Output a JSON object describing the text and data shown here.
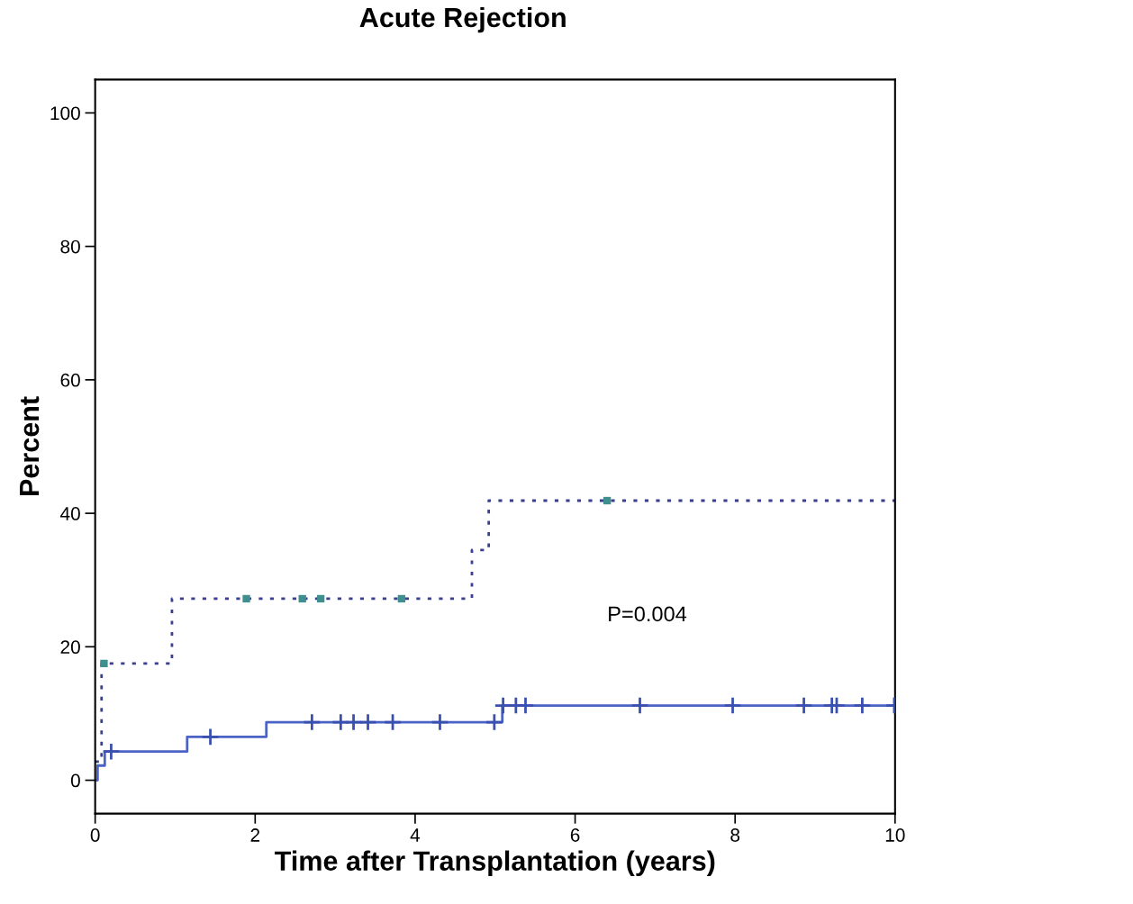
{
  "chart_data": {
    "type": "step",
    "title": "Acute Rejection",
    "xlabel": "Time after Transplantation (years)",
    "ylabel": "Percent",
    "xlim": [
      0,
      10
    ],
    "xticks": [
      0,
      2,
      4,
      6,
      8,
      10
    ],
    "ylim": [
      -5,
      105
    ],
    "yticks": [
      0,
      20,
      40,
      60,
      80,
      100
    ],
    "grid": false,
    "legend": false,
    "annotations": [
      "P=0.004"
    ],
    "series": [
      {
        "color": "#4a63c4",
        "line_style": "solid",
        "marker": "none",
        "x": [
          0,
          0.03,
          0.12,
          1.15,
          2.14,
          5.09,
          10
        ],
        "values": [
          0,
          2.2,
          4.3,
          6.5,
          8.7,
          11.2,
          11.2
        ]
      },
      {
        "color": "#3a3f8f",
        "line_style": "dotted",
        "marker": "none",
        "x": [
          0,
          0.08,
          0.96,
          4.71,
          4.92,
          10
        ],
        "values": [
          2.8,
          17.5,
          27.2,
          34.5,
          41.9,
          41.9
        ]
      },
      {
        "type": "scatter",
        "color": "#3a50b0",
        "marker": "cross",
        "x": [
          0.2,
          1.44,
          2.71,
          3.07,
          3.23,
          3.41,
          3.72,
          4.31,
          4.99,
          5.1,
          5.26,
          5.38,
          6.81,
          7.97,
          8.86,
          9.21,
          9.27,
          9.59,
          9.99
        ],
        "values": [
          4.3,
          6.5,
          8.7,
          8.7,
          8.7,
          8.7,
          8.7,
          8.7,
          8.7,
          11.2,
          11.2,
          11.2,
          11.2,
          11.2,
          11.2,
          11.2,
          11.2,
          11.2,
          11.2
        ]
      },
      {
        "type": "scatter",
        "color": "#3f8f8f",
        "marker": "square",
        "x": [
          0.11,
          1.89,
          2.59,
          2.82,
          3.83,
          6.4
        ],
        "values": [
          17.5,
          27.2,
          27.2,
          27.2,
          27.2,
          41.9
        ]
      }
    ]
  }
}
